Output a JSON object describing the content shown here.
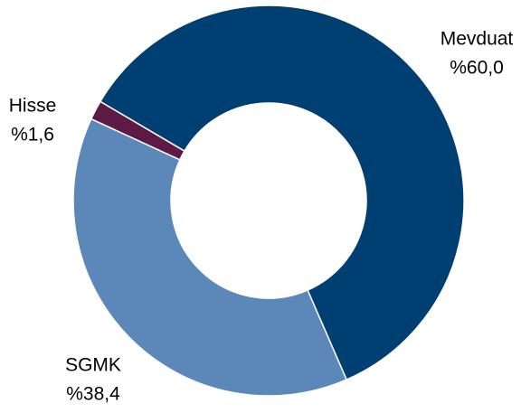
{
  "chart_data": {
    "type": "donut",
    "categories": [
      "Mevduat",
      "SGMK",
      "Hisse"
    ],
    "values": [
      60.0,
      38.4,
      1.6
    ],
    "value_labels": [
      "%60,0",
      "%38,4",
      "%1,6"
    ],
    "colors": [
      "#003f72",
      "#5b88b8",
      "#5c1a45"
    ]
  }
}
